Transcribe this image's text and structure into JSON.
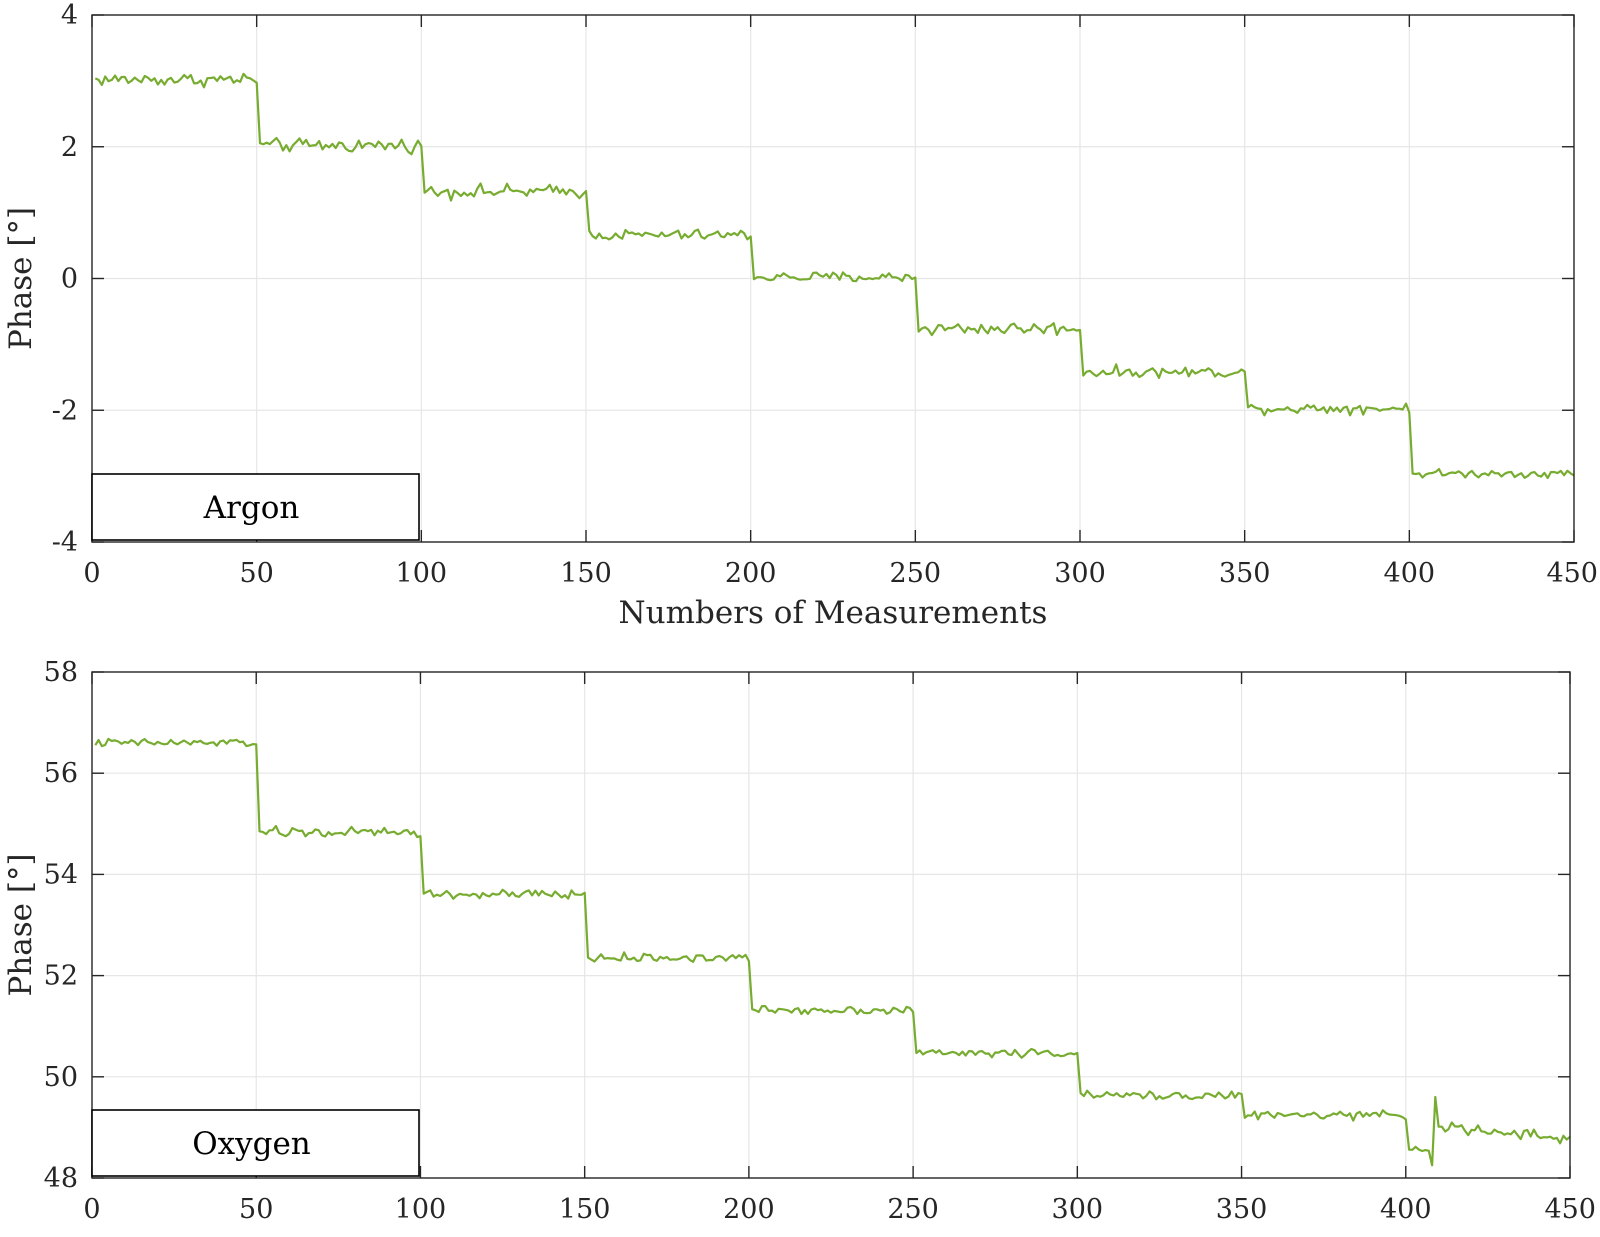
{
  "colors": {
    "series": "#77ac30",
    "axis": "#262626",
    "grid": "#e6e6e6"
  },
  "chart_data": [
    {
      "type": "line",
      "xlabel": "Numbers of Measurements",
      "ylabel": "Phase [°]",
      "xlim": [
        0,
        450
      ],
      "ylim": [
        -4,
        4
      ],
      "xticks": [
        0,
        50,
        100,
        150,
        200,
        250,
        300,
        350,
        400,
        450
      ],
      "yticks": [
        -4,
        -2,
        0,
        2,
        4
      ],
      "xtick_labels": [
        "0",
        "50",
        "100",
        "150",
        "200",
        "250",
        "300",
        "350",
        "400",
        "450"
      ],
      "ytick_labels": [
        "-4",
        "-2",
        "0",
        "2",
        "4"
      ],
      "grid": true,
      "legend": {
        "location": "bottom-left",
        "entries": [
          "Argon"
        ]
      },
      "series": [
        {
          "name": "Argon",
          "color": "#77ac30",
          "steps": [
            {
              "x": [
                1,
                50
              ],
              "level": 3.02,
              "noise": 0.05
            },
            {
              "x": [
                51,
                100
              ],
              "level": 2.02,
              "noise": 0.05
            },
            {
              "x": [
                101,
                150
              ],
              "level": 1.32,
              "noise": 0.05
            },
            {
              "x": [
                151,
                200
              ],
              "level": 0.66,
              "noise": 0.04
            },
            {
              "x": [
                201,
                250
              ],
              "level": 0.02,
              "noise": 0.04
            },
            {
              "x": [
                251,
                300
              ],
              "level": -0.76,
              "noise": 0.05
            },
            {
              "x": [
                301,
                350
              ],
              "level": -1.42,
              "noise": 0.04
            },
            {
              "x": [
                351,
                400
              ],
              "level": -1.97,
              "noise": 0.04
            },
            {
              "x": [
                401,
                450
              ],
              "level": -2.96,
              "noise": 0.03
            }
          ]
        }
      ]
    },
    {
      "type": "line",
      "xlabel": "",
      "ylabel": "Phase [°]",
      "xlim": [
        0,
        450
      ],
      "ylim": [
        48,
        58
      ],
      "xticks": [
        0,
        50,
        100,
        150,
        200,
        250,
        300,
        350,
        400,
        450
      ],
      "yticks": [
        48,
        50,
        52,
        54,
        56,
        58
      ],
      "xtick_labels": [
        "0",
        "50",
        "100",
        "150",
        "200",
        "250",
        "300",
        "350",
        "400",
        "450"
      ],
      "ytick_labels": [
        "48",
        "50",
        "52",
        "54",
        "56",
        "58"
      ],
      "grid": true,
      "legend": {
        "location": "bottom-left",
        "entries": [
          "Oxygen"
        ]
      },
      "series": [
        {
          "name": "Oxygen",
          "color": "#77ac30",
          "steps": [
            {
              "x": [
                1,
                50
              ],
              "level": 56.6,
              "noise": 0.04
            },
            {
              "x": [
                51,
                100
              ],
              "level": 54.83,
              "noise": 0.05
            },
            {
              "x": [
                101,
                150
              ],
              "level": 53.6,
              "noise": 0.05
            },
            {
              "x": [
                151,
                200
              ],
              "level": 52.35,
              "noise": 0.04
            },
            {
              "x": [
                201,
                250
              ],
              "level": 51.32,
              "noise": 0.04
            },
            {
              "x": [
                251,
                300
              ],
              "level": 50.47,
              "noise": 0.04
            },
            {
              "x": [
                301,
                350
              ],
              "level": 49.63,
              "noise": 0.04
            },
            {
              "x": [
                351,
                400
              ],
              "level": 49.24,
              "noise": 0.04
            },
            {
              "x": [
                401,
                409
              ],
              "level": 48.6,
              "noise": 0.05
            },
            {
              "x": [
                410,
                450
              ],
              "level": 49.0,
              "noise": 0.06,
              "slope": -0.006
            }
          ],
          "outliers": [
            {
              "x": 408,
              "y": 48.25
            },
            {
              "x": 409,
              "y": 49.6
            }
          ]
        }
      ]
    }
  ]
}
